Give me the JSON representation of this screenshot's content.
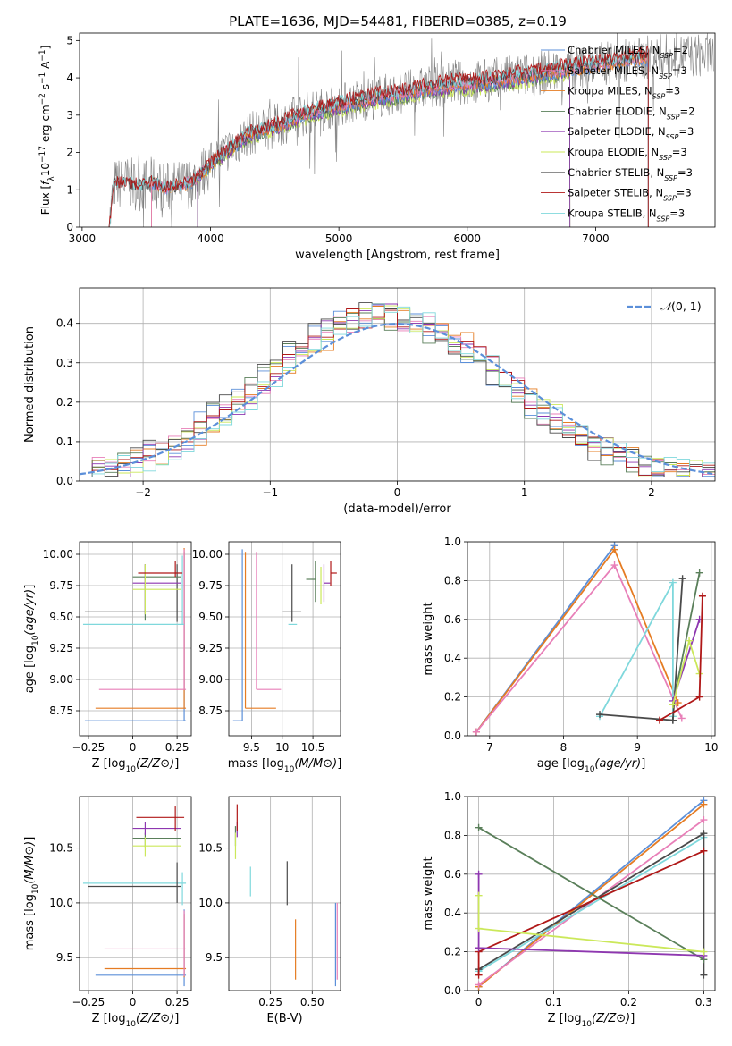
{
  "figure_title": "PLATE=1636, MJD=54481, FIBERID=0385, z=0.19",
  "colors": {
    "Chabrier MILES": "#5b8fd9",
    "Salpeter MILES": "#e87fb8",
    "Kroupa MILES": "#e57c23",
    "Chabrier ELODIE": "#5a7f5a",
    "Salpeter ELODIE": "#8e37b0",
    "Kroupa ELODIE": "#cbe85a",
    "Chabrier STELIB": "#4a4a4a",
    "Salpeter STELIB": "#b01818",
    "Kroupa STELIB": "#7fd8dc",
    "data": "#808080"
  },
  "chart_data": [
    {
      "id": "spectrum",
      "type": "line",
      "title": "PLATE=1636, MJD=54481, FIBERID=0385, z=0.19",
      "xlabel": "wavelength [Angstrom, rest frame]",
      "ylabel": "Flux [fλ10⁻¹⁷ erg cm⁻² s⁻¹ A⁻¹]",
      "xlim": [
        2980,
        7930
      ],
      "ylim": [
        0,
        5.2
      ],
      "xticks": [
        3000,
        4000,
        5000,
        6000,
        7000
      ],
      "yticks": [
        0,
        1,
        2,
        3,
        4,
        5
      ],
      "grid": false,
      "legend_position": "top-right",
      "legend": [
        {
          "label": "Chabrier MILES, NSSP=2",
          "key": "Chabrier MILES"
        },
        {
          "label": "Salpeter MILES, NSSP=3",
          "key": "Salpeter MILES"
        },
        {
          "label": "Kroupa MILES, NSSP=3",
          "key": "Kroupa MILES"
        },
        {
          "label": "Chabrier ELODIE, NSSP=2",
          "key": "Chabrier ELODIE"
        },
        {
          "label": "Salpeter ELODIE, NSSP=3",
          "key": "Salpeter ELODIE"
        },
        {
          "label": "Kroupa ELODIE, NSSP=3",
          "key": "Kroupa ELODIE"
        },
        {
          "label": "Chabrier STELIB, NSSP=3",
          "key": "Chabrier STELIB"
        },
        {
          "label": "Salpeter STELIB, NSSP=3",
          "key": "Salpeter STELIB"
        },
        {
          "label": "Kroupa STELIB, NSSP=3",
          "key": "Kroupa STELIB"
        }
      ],
      "continuum": {
        "x": [
          3210,
          3250,
          3350,
          3450,
          3550,
          3650,
          3750,
          3850,
          3950,
          4050,
          4150,
          4300,
          4500,
          4700,
          4900,
          5100,
          5300,
          5500,
          5700,
          5900,
          6100,
          6300,
          6500,
          6700,
          6900,
          7100,
          7300,
          7500
        ],
        "y": [
          0.0,
          1.15,
          1.2,
          1.1,
          1.2,
          1.05,
          1.1,
          1.2,
          1.5,
          1.85,
          2.1,
          2.5,
          2.7,
          3.0,
          3.2,
          3.35,
          3.5,
          3.6,
          3.75,
          3.85,
          3.9,
          4.0,
          4.1,
          4.2,
          4.3,
          4.4,
          4.5,
          4.6
        ]
      },
      "data_range": [
        3210,
        7920
      ],
      "model_ranges": {
        "Chabrier MILES": [
          3540,
          7410
        ],
        "Salpeter MILES": [
          3540,
          7410
        ],
        "Kroupa MILES": [
          3540,
          7410
        ],
        "Chabrier ELODIE": [
          3900,
          6800
        ],
        "Salpeter ELODIE": [
          3900,
          6800
        ],
        "Kroupa ELODIE": [
          3900,
          6800
        ],
        "Chabrier STELIB": [
          3210,
          7410
        ],
        "Salpeter STELIB": [
          3210,
          7410
        ],
        "Kroupa STELIB": [
          3210,
          7410
        ]
      }
    },
    {
      "id": "residuals",
      "type": "line",
      "xlabel": "(data-model)/error",
      "ylabel": "Normed distribution",
      "xlim": [
        -2.5,
        2.5
      ],
      "ylim": [
        0,
        0.49
      ],
      "xticks": [
        -2,
        -1,
        0,
        1,
        2
      ],
      "yticks": [
        0.0,
        0.1,
        0.2,
        0.3,
        0.4
      ],
      "grid": true,
      "legend_position": "top-right",
      "legend": [
        {
          "label": "𝒩(0, 1)",
          "key": "Chabrier MILES"
        }
      ],
      "bin_width": 0.1,
      "normal_curve": {
        "mean": 0,
        "sigma": 1
      }
    },
    {
      "id": "age-vs-Z",
      "type": "scatter",
      "xlabel": "Z [log10(Z/Z⊙)]",
      "ylabel": "age  [log10(age/yr)]",
      "xlim": [
        -0.3,
        0.33
      ],
      "ylim": [
        8.55,
        10.1
      ],
      "xticks": [
        -0.25,
        0.0,
        0.25
      ],
      "yticks": [
        8.75,
        9.0,
        9.25,
        9.5,
        9.75,
        10.0
      ],
      "grid": true,
      "series": [
        {
          "key": "Chabrier MILES",
          "x": 0.29,
          "y": 8.67,
          "xerr": [
            0.56,
            0.01
          ],
          "yerr": [
            0.0,
            1.35
          ]
        },
        {
          "key": "Kroupa MILES",
          "x": 0.29,
          "y": 8.77,
          "xerr": [
            0.5,
            0.01
          ],
          "yerr": [
            0.0,
            1.28
          ]
        },
        {
          "key": "Salpeter MILES",
          "x": 0.29,
          "y": 8.92,
          "xerr": [
            0.48,
            0.01
          ],
          "yerr": [
            0.0,
            1.12
          ]
        },
        {
          "key": "Kroupa STELIB",
          "x": 0.28,
          "y": 9.44,
          "xerr": [
            0.56,
            0.01
          ],
          "yerr": [
            0.0,
            0.55
          ]
        },
        {
          "key": "Chabrier STELIB",
          "x": 0.25,
          "y": 9.54,
          "xerr": [
            0.52,
            0.03
          ],
          "yerr": [
            0.08,
            0.38
          ]
        },
        {
          "key": "Chabrier ELODIE",
          "x": 0.07,
          "y": 9.82,
          "xerr": [
            0.07,
            0.2
          ],
          "yerr": [
            0.35,
            0.1
          ]
        },
        {
          "key": "Salpeter ELODIE",
          "x": 0.07,
          "y": 9.77,
          "xerr": [
            0.07,
            0.2
          ],
          "yerr": [
            0.25,
            0.15
          ]
        },
        {
          "key": "Kroupa ELODIE",
          "x": 0.07,
          "y": 9.72,
          "xerr": [
            0.07,
            0.2
          ],
          "yerr": [
            0.2,
            0.2
          ]
        },
        {
          "key": "Salpeter STELIB",
          "x": 0.24,
          "y": 9.85,
          "xerr": [
            0.21,
            0.04
          ],
          "yerr": [
            0.03,
            0.1
          ]
        }
      ]
    },
    {
      "id": "age-vs-mass",
      "type": "scatter",
      "xlabel": "mass [log10(M/M⊙)]",
      "ylabel": "",
      "xlim": [
        9.13,
        10.95
      ],
      "ylim": [
        8.55,
        10.1
      ],
      "xticks": [
        9.5,
        10.0,
        10.5
      ],
      "yticks": [
        8.75,
        9.0,
        9.25,
        9.5,
        9.75,
        10.0
      ],
      "grid": true,
      "series": [
        {
          "key": "Chabrier MILES",
          "x": 9.35,
          "y": 8.67,
          "xerr": [
            0.15,
            0.0
          ],
          "yerr": [
            0.0,
            1.37
          ]
        },
        {
          "key": "Kroupa MILES",
          "x": 9.4,
          "y": 8.77,
          "xerr": [
            0.0,
            0.5
          ],
          "yerr": [
            0.0,
            1.25
          ]
        },
        {
          "key": "Salpeter MILES",
          "x": 9.58,
          "y": 8.92,
          "xerr": [
            0.0,
            0.4
          ],
          "yerr": [
            0.0,
            1.1
          ]
        },
        {
          "key": "Kroupa STELIB",
          "x": 10.17,
          "y": 9.44,
          "xerr": [
            0.07,
            0.07
          ],
          "yerr": [
            0.0,
            0.0
          ]
        },
        {
          "key": "Chabrier STELIB",
          "x": 10.16,
          "y": 9.54,
          "xerr": [
            0.15,
            0.15
          ],
          "yerr": [
            0.08,
            0.38
          ]
        },
        {
          "key": "Chabrier ELODIE",
          "x": 10.54,
          "y": 9.8,
          "xerr": [
            0.15,
            0.0
          ],
          "yerr": [
            0.18,
            0.15
          ]
        },
        {
          "key": "Kroupa ELODIE",
          "x": 10.63,
          "y": 9.75,
          "xerr": [
            0.0,
            0.0
          ],
          "yerr": [
            0.15,
            0.15
          ]
        },
        {
          "key": "Salpeter ELODIE",
          "x": 10.68,
          "y": 9.77,
          "xerr": [
            0.0,
            0.1
          ],
          "yerr": [
            0.15,
            0.15
          ]
        },
        {
          "key": "Salpeter STELIB",
          "x": 10.79,
          "y": 9.85,
          "xerr": [
            0.0,
            0.1
          ],
          "yerr": [
            0.1,
            0.1
          ]
        }
      ]
    },
    {
      "id": "weight-vs-age",
      "type": "line",
      "xlabel": "age  [log10(age/yr)]",
      "ylabel": "mass weight",
      "xlim": [
        6.7,
        10.05
      ],
      "ylim": [
        0,
        1.0
      ],
      "xticks": [
        7,
        8,
        9,
        10
      ],
      "yticks": [
        0.0,
        0.2,
        0.4,
        0.6,
        0.8,
        1.0
      ],
      "grid": true,
      "series": [
        {
          "key": "Chabrier MILES",
          "x": [
            6.82,
            8.69
          ],
          "y": [
            0.02,
            0.98
          ]
        },
        {
          "key": "Kroupa MILES",
          "x": [
            6.82,
            8.69,
            9.55
          ],
          "y": [
            0.02,
            0.96,
            0.17
          ]
        },
        {
          "key": "Salpeter MILES",
          "x": [
            6.82,
            8.69,
            9.6
          ],
          "y": [
            0.02,
            0.88,
            0.09
          ]
        },
        {
          "key": "Kroupa STELIB",
          "x": [
            8.49,
            9.48,
            9.48
          ],
          "y": [
            0.1,
            0.79,
            0.1
          ]
        },
        {
          "key": "Chabrier STELIB",
          "x": [
            8.49,
            9.48,
            9.61,
            9.48
          ],
          "y": [
            0.11,
            0.08,
            0.81,
            0.08
          ]
        },
        {
          "key": "Chabrier ELODIE",
          "x": [
            9.48,
            9.84
          ],
          "y": [
            0.16,
            0.84
          ]
        },
        {
          "key": "Salpeter ELODIE",
          "x": [
            9.48,
            9.84
          ],
          "y": [
            0.18,
            0.6
          ]
        },
        {
          "key": "Kroupa ELODIE",
          "x": [
            9.48,
            9.7,
            9.84
          ],
          "y": [
            0.16,
            0.49,
            0.32
          ]
        },
        {
          "key": "Salpeter STELIB",
          "x": [
            9.3,
            9.84,
            9.88
          ],
          "y": [
            0.08,
            0.2,
            0.72
          ]
        }
      ]
    },
    {
      "id": "mass-vs-Z",
      "type": "scatter",
      "xlabel": "Z [log10(Z/Z⊙)]",
      "ylabel": "mass [log10(M/M⊙)]",
      "xlim": [
        -0.3,
        0.33
      ],
      "ylim": [
        9.2,
        10.97
      ],
      "xticks": [
        -0.25,
        0.0,
        0.25
      ],
      "yticks": [
        9.5,
        10.0,
        10.5
      ],
      "grid": true,
      "series": [
        {
          "key": "Chabrier MILES",
          "x": 0.29,
          "y": 9.34,
          "xerr": [
            0.5,
            0.01
          ],
          "yerr": [
            0.1,
            0.6
          ]
        },
        {
          "key": "Kroupa MILES",
          "x": 0.29,
          "y": 9.4,
          "xerr": [
            0.45,
            0.01
          ],
          "yerr": [
            0.08,
            0.5
          ]
        },
        {
          "key": "Salpeter MILES",
          "x": 0.29,
          "y": 9.58,
          "xerr": [
            0.45,
            0.01
          ],
          "yerr": [
            0.25,
            0.35
          ]
        },
        {
          "key": "Kroupa STELIB",
          "x": 0.28,
          "y": 10.18,
          "xerr": [
            0.56,
            0.02
          ],
          "yerr": [
            0.2,
            0.1
          ]
        },
        {
          "key": "Chabrier STELIB",
          "x": 0.25,
          "y": 10.15,
          "xerr": [
            0.5,
            0.02
          ],
          "yerr": [
            0.15,
            0.22
          ]
        },
        {
          "key": "Chabrier ELODIE",
          "x": 0.07,
          "y": 10.59,
          "xerr": [
            0.07,
            0.2
          ],
          "yerr": [
            0.08,
            0.05
          ]
        },
        {
          "key": "Kroupa ELODIE",
          "x": 0.07,
          "y": 10.52,
          "xerr": [
            0.07,
            0.2
          ],
          "yerr": [
            0.1,
            0.08
          ]
        },
        {
          "key": "Salpeter ELODIE",
          "x": 0.07,
          "y": 10.68,
          "xerr": [
            0.07,
            0.2
          ],
          "yerr": [
            0.06,
            0.06
          ]
        },
        {
          "key": "Salpeter STELIB",
          "x": 0.24,
          "y": 10.78,
          "xerr": [
            0.22,
            0.05
          ],
          "yerr": [
            0.12,
            0.1
          ]
        }
      ]
    },
    {
      "id": "mass-vs-EBV",
      "type": "scatter",
      "xlabel": "E(B-V)",
      "ylabel": "",
      "xlim": [
        0.0,
        0.67
      ],
      "ylim": [
        9.2,
        10.97
      ],
      "xticks": [
        0.25,
        0.5
      ],
      "xtick_labels": [
        "0.25",
        "0.50"
      ],
      "yticks": [
        9.5,
        10.0,
        10.5
      ],
      "grid": true,
      "series": [
        {
          "key": "Chabrier MILES",
          "x": 0.64,
          "y": 9.4,
          "xerr": [
            0,
            0
          ],
          "yerr": [
            0.16,
            0.6
          ]
        },
        {
          "key": "Salpeter MILES",
          "x": 0.65,
          "y": 9.6,
          "xerr": [
            0,
            0
          ],
          "yerr": [
            0.3,
            0.4
          ]
        },
        {
          "key": "Kroupa MILES",
          "x": 0.4,
          "y": 9.55,
          "xerr": [
            0,
            0
          ],
          "yerr": [
            0.25,
            0.3
          ]
        },
        {
          "key": "Chabrier STELIB",
          "x": 0.35,
          "y": 10.18,
          "xerr": [
            0,
            0
          ],
          "yerr": [
            0.2,
            0.2
          ]
        },
        {
          "key": "Kroupa STELIB",
          "x": 0.13,
          "y": 10.18,
          "xerr": [
            0,
            0
          ],
          "yerr": [
            0.12,
            0.15
          ]
        },
        {
          "key": "Chabrier ELODIE",
          "x": 0.04,
          "y": 10.6,
          "xerr": [
            0,
            0
          ],
          "yerr": [
            0.08,
            0.1
          ]
        },
        {
          "key": "Kroupa ELODIE",
          "x": 0.04,
          "y": 10.52,
          "xerr": [
            0,
            0
          ],
          "yerr": [
            0.12,
            0.12
          ]
        },
        {
          "key": "Salpeter ELODIE",
          "x": 0.05,
          "y": 10.67,
          "xerr": [
            0,
            0
          ],
          "yerr": [
            0.07,
            0.07
          ]
        },
        {
          "key": "Salpeter STELIB",
          "x": 0.05,
          "y": 10.78,
          "xerr": [
            0,
            0
          ],
          "yerr": [
            0.12,
            0.12
          ]
        }
      ]
    },
    {
      "id": "weight-vs-Z",
      "type": "line",
      "xlabel": "Z [log10(Z/Z⊙)]",
      "ylabel": "mass weight",
      "xlim": [
        -0.015,
        0.315
      ],
      "ylim": [
        0,
        1.0
      ],
      "xticks": [
        0.0,
        0.1,
        0.2,
        0.3
      ],
      "yticks": [
        0.0,
        0.2,
        0.4,
        0.6,
        0.8,
        1.0
      ],
      "grid": true,
      "series": [
        {
          "key": "Chabrier MILES",
          "x": [
            0.0,
            0.3
          ],
          "y": [
            0.02,
            0.98
          ]
        },
        {
          "key": "Kroupa MILES",
          "x": [
            0.0,
            0.3
          ],
          "y": [
            0.02,
            0.96
          ]
        },
        {
          "key": "Salpeter MILES",
          "x": [
            0.0,
            0.3
          ],
          "y": [
            0.03,
            0.88
          ]
        },
        {
          "key": "Kroupa STELIB",
          "x": [
            0.0,
            0.3
          ],
          "y": [
            0.1,
            0.79
          ]
        },
        {
          "key": "Chabrier STELIB",
          "x": [
            0.0,
            0.3,
            0.3
          ],
          "y": [
            0.11,
            0.81,
            0.08
          ]
        },
        {
          "key": "Salpeter STELIB",
          "x": [
            0.0,
            0.0,
            0.3
          ],
          "y": [
            0.08,
            0.2,
            0.72
          ]
        },
        {
          "key": "Chabrier ELODIE",
          "x": [
            0.0,
            0.3
          ],
          "y": [
            0.84,
            0.16
          ]
        },
        {
          "key": "Salpeter ELODIE",
          "x": [
            0.0,
            0.0,
            0.3
          ],
          "y": [
            0.6,
            0.22,
            0.18
          ]
        },
        {
          "key": "Kroupa ELODIE",
          "x": [
            0.0,
            0.0,
            0.3
          ],
          "y": [
            0.49,
            0.32,
            0.2
          ]
        }
      ]
    }
  ]
}
